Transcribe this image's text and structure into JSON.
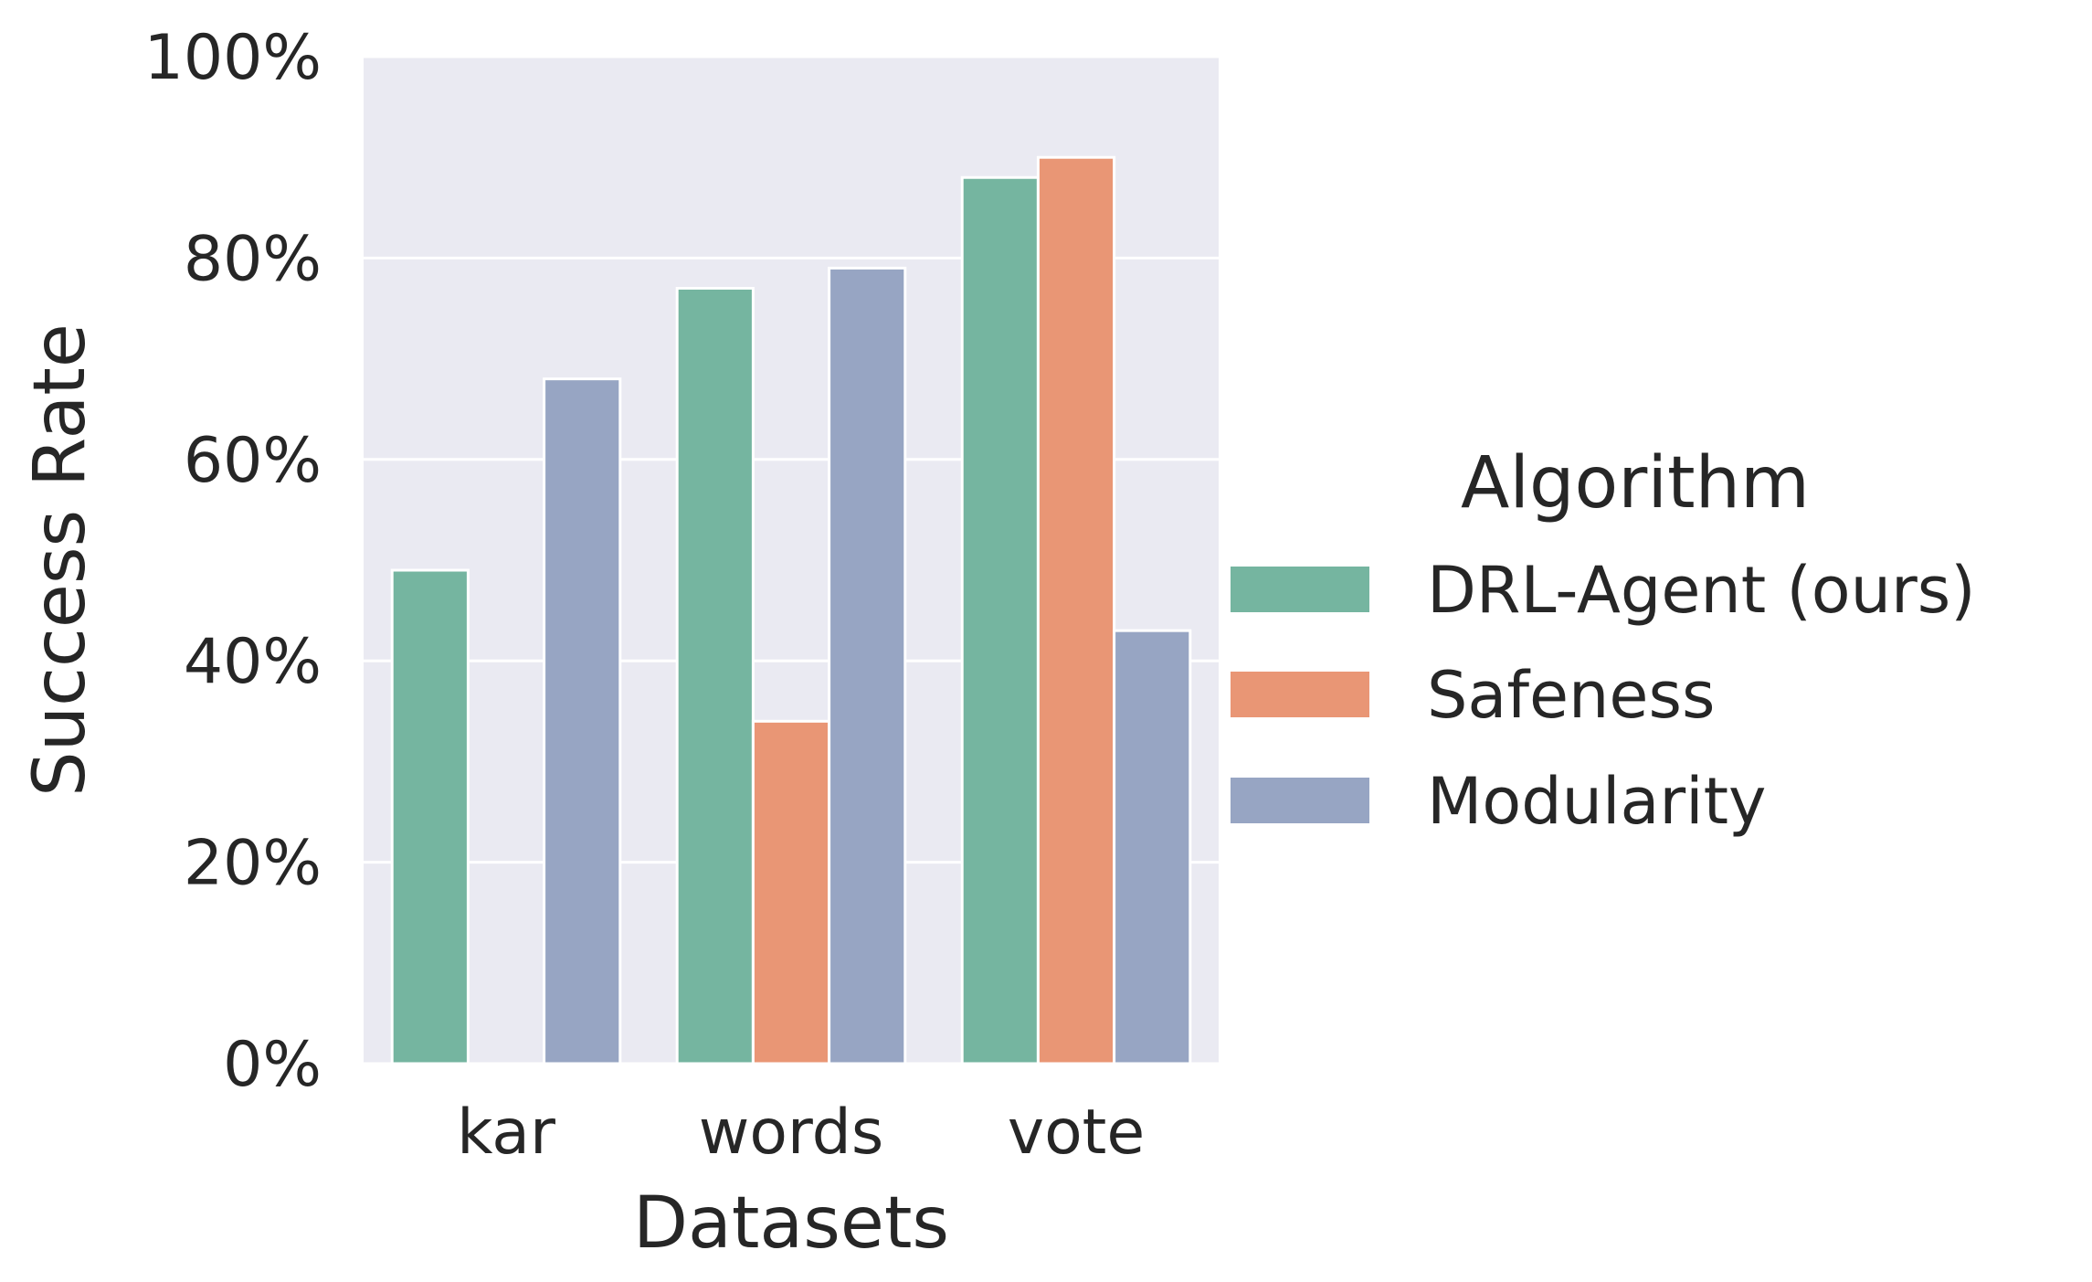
{
  "chart_data": {
    "type": "bar",
    "categories": [
      "kar",
      "words",
      "vote"
    ],
    "series": [
      {
        "name": "DRL-Agent (ours)",
        "values": [
          49,
          77,
          88
        ],
        "color": "#75b5a0"
      },
      {
        "name": "Safeness",
        "values": [
          0,
          34,
          90
        ],
        "color": "#e99675"
      },
      {
        "name": "Modularity",
        "values": [
          68,
          79,
          43
        ],
        "color": "#97a5c3"
      }
    ],
    "xlabel": "Datasets",
    "ylabel": "Success Rate",
    "ylim": [
      0,
      100
    ],
    "yticks": [
      "0%",
      "20%",
      "40%",
      "60%",
      "80%",
      "100%"
    ],
    "yticks_values": [
      0,
      20,
      40,
      60,
      80,
      100
    ],
    "grid": true,
    "legend": {
      "title": "Algorithm",
      "placement": "right"
    },
    "colors": {
      "plot_bg": "#eaeaf2",
      "grid": "#ffffff",
      "text": "#262626"
    }
  }
}
